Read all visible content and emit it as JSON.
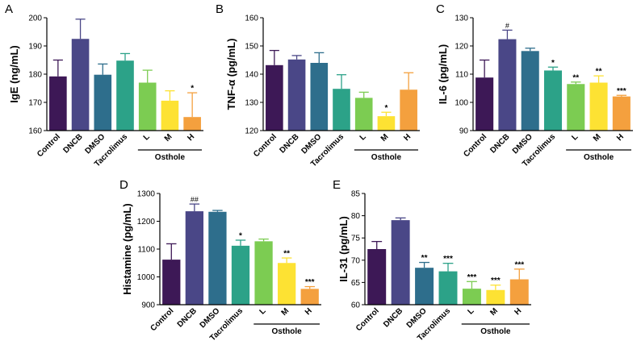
{
  "chart_data": [
    {
      "panel": "A",
      "type": "bar",
      "ylabel": "IgE (ng/mL)",
      "ylim": [
        160,
        200
      ],
      "yticks": [
        160,
        170,
        180,
        190,
        200
      ],
      "categories": [
        "Control",
        "DNCB",
        "DMSO",
        "Tacrolimus",
        "L",
        "M",
        "H"
      ],
      "group": {
        "label": "Osthole",
        "categories": [
          "L",
          "M",
          "H"
        ]
      },
      "values": [
        179.2,
        192.5,
        179.8,
        184.8,
        177.0,
        170.6,
        164.8
      ],
      "errors": [
        5.8,
        7.0,
        3.8,
        2.5,
        4.4,
        3.5,
        8.6
      ],
      "significance": [
        "",
        "",
        "",
        "",
        "",
        "",
        "*"
      ]
    },
    {
      "panel": "B",
      "type": "bar",
      "ylabel": "TNF-α (pg/mL)",
      "ylim": [
        120,
        160
      ],
      "yticks": [
        120,
        130,
        140,
        150,
        160
      ],
      "categories": [
        "Control",
        "DNCB",
        "DMSO",
        "Tacrolimus",
        "L",
        "M",
        "H"
      ],
      "group": {
        "label": "Osthole",
        "categories": [
          "L",
          "M",
          "H"
        ]
      },
      "values": [
        143.2,
        145.2,
        144.0,
        134.8,
        131.6,
        125.1,
        134.5
      ],
      "errors": [
        5.2,
        1.4,
        3.6,
        5.0,
        2.0,
        1.4,
        6.0
      ],
      "significance": [
        "",
        "",
        "",
        "",
        "",
        "*",
        ""
      ]
    },
    {
      "panel": "C",
      "type": "bar",
      "ylabel": "IL-6 (pg/mL)",
      "ylim": [
        90,
        130
      ],
      "yticks": [
        90,
        100,
        110,
        120,
        130
      ],
      "categories": [
        "Control",
        "DNCB",
        "DMSO",
        "Tacrolimus",
        "L",
        "M",
        "H"
      ],
      "group": {
        "label": "Osthole",
        "categories": [
          "L",
          "M",
          "H"
        ]
      },
      "values": [
        108.8,
        122.4,
        118.2,
        111.3,
        106.5,
        107.0,
        102.1
      ],
      "errors": [
        6.2,
        3.2,
        1.0,
        1.2,
        0.7,
        2.4,
        0.4
      ],
      "significance": [
        "",
        "#",
        "",
        "*",
        "**",
        "**",
        "***"
      ]
    },
    {
      "panel": "D",
      "type": "bar",
      "ylabel": "Histamine (pg/mL)",
      "ylim": [
        900,
        1300
      ],
      "yticks": [
        900,
        1000,
        1100,
        1200,
        1300
      ],
      "categories": [
        "Control",
        "DNCB",
        "DMSO",
        "Tacrolimus",
        "L",
        "M",
        "H"
      ],
      "group": {
        "label": "Osthole",
        "categories": [
          "L",
          "M",
          "H"
        ]
      },
      "values": [
        1062,
        1236,
        1234,
        1112,
        1128,
        1050,
        957
      ],
      "errors": [
        57,
        26,
        5,
        20,
        8,
        18,
        8
      ],
      "significance": [
        "",
        "##",
        "",
        "*",
        "",
        "**",
        "***"
      ]
    },
    {
      "panel": "E",
      "type": "bar",
      "ylabel": "IL-31 (pg/mL)",
      "ylim": [
        60,
        85
      ],
      "yticks": [
        60,
        65,
        70,
        75,
        80,
        85
      ],
      "categories": [
        "Control",
        "DNCB",
        "DMSO",
        "Tacrolimus",
        "L",
        "M",
        "H"
      ],
      "group": {
        "label": "Osthole",
        "categories": [
          "L",
          "M",
          "H"
        ]
      },
      "values": [
        72.5,
        79.0,
        68.3,
        67.5,
        63.6,
        63.3,
        65.7
      ],
      "errors": [
        1.7,
        0.5,
        1.2,
        1.8,
        1.6,
        1.1,
        2.3
      ],
      "significance": [
        "",
        "",
        "**",
        "***",
        "***",
        "***",
        "***"
      ]
    }
  ],
  "colors": {
    "bars": [
      "#3d1856",
      "#4a4787",
      "#2e6e8c",
      "#2ca288",
      "#7ccc52",
      "#fde233",
      "#f4a03e"
    ],
    "errbars": [
      "#3d1856",
      "#4a4787",
      "#2e6e8c",
      "#2ca288",
      "#7ccc52",
      "#fde233",
      "#f4a03e"
    ]
  }
}
